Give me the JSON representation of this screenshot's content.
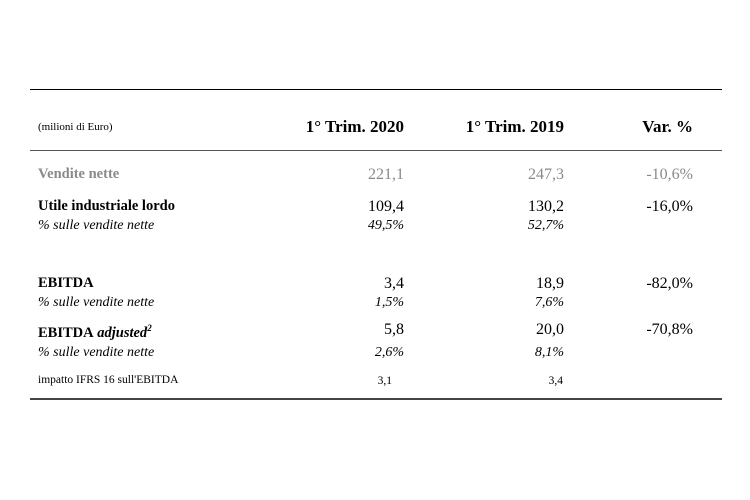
{
  "header": {
    "unit": "(milioni di Euro)",
    "col1": "1° Trim. 2020",
    "col2": "1° Trim. 2019",
    "col3": "Var. %"
  },
  "rows": {
    "net_sales": {
      "label": "Vendite nette",
      "v2020": "221,1",
      "v2019": "247,3",
      "var": "-10,6%"
    },
    "gross_profit": {
      "label": "Utile industriale lordo",
      "v2020": "109,4",
      "v2019": "130,2",
      "var": "-16,0%"
    },
    "gross_profit_pct": {
      "label": "% sulle vendite nette",
      "v2020": "49,5%",
      "v2019": "52,7%"
    },
    "ebitda": {
      "label": "EBITDA",
      "v2020": "3,4",
      "v2019": "18,9",
      "var": "-82,0%"
    },
    "ebitda_pct": {
      "label": "% sulle vendite nette",
      "v2020": "1,5%",
      "v2019": "7,6%"
    },
    "ebitda_adj": {
      "label_main": "EBITDA",
      "label_italic": "adjusted",
      "footnote": "2",
      "v2020": "5,8",
      "v2019": "20,0",
      "var": "-70,8%"
    },
    "ebitda_adj_pct": {
      "label": "% sulle vendite nette",
      "v2020": "2,6%",
      "v2019": "8,1%"
    },
    "ifrs16": {
      "label": "impatto IFRS 16 sull'EBITDA",
      "v2020": "3,1",
      "v2019": "3,4"
    }
  }
}
